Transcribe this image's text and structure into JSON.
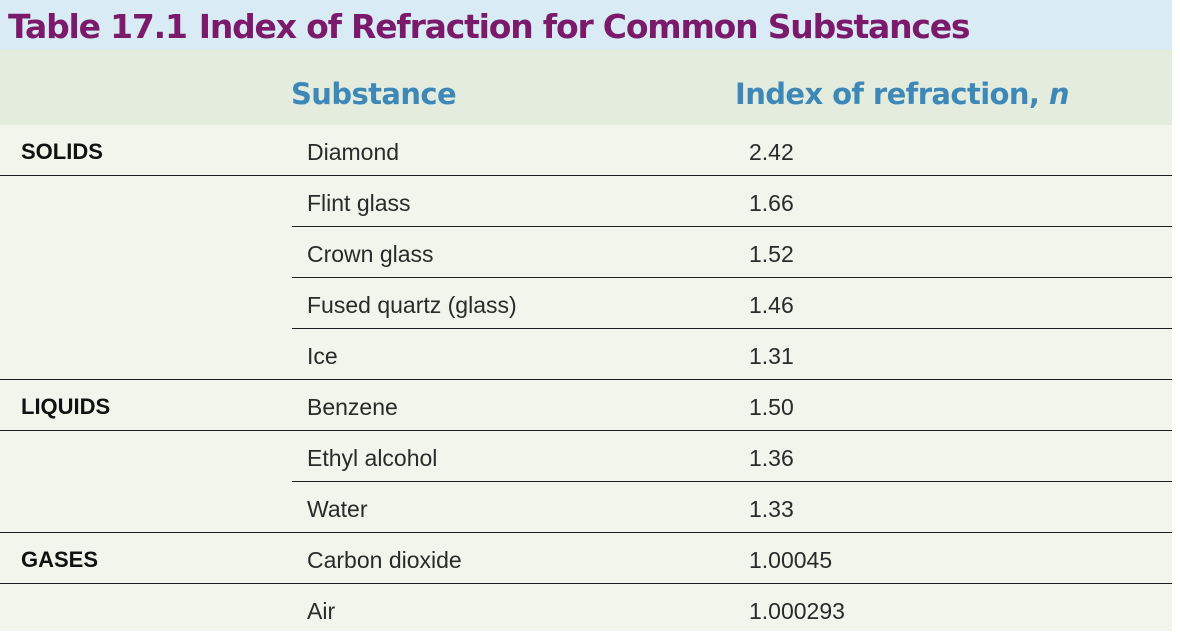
{
  "title": {
    "number": "Table 17.1",
    "text": "Index of Refraction for Common Substances"
  },
  "headers": {
    "substance": "Substance",
    "index_prefix": "Index of refraction, ",
    "index_var": "n"
  },
  "rows": [
    {
      "category": "SOLIDS",
      "substance": "Diamond",
      "value": "2.42"
    },
    {
      "category": "",
      "substance": "Flint glass",
      "value": "1.66"
    },
    {
      "category": "",
      "substance": "Crown glass",
      "value": "1.52"
    },
    {
      "category": "",
      "substance": "Fused quartz (glass)",
      "value": "1.46"
    },
    {
      "category": "",
      "substance": "Ice",
      "value": "1.31"
    },
    {
      "category": "LIQUIDS",
      "substance": "Benzene",
      "value": "1.50"
    },
    {
      "category": "",
      "substance": "Ethyl alcohol",
      "value": "1.36"
    },
    {
      "category": "",
      "substance": "Water",
      "value": "1.33"
    },
    {
      "category": "GASES",
      "substance": "Carbon dioxide",
      "value": "1.00045"
    },
    {
      "category": "",
      "substance": "Air",
      "value": "1.000293"
    }
  ],
  "colors": {
    "title": "#7b1a6b",
    "title_background": "#d9ebf5",
    "header_text": "#3d88b7",
    "table_background": "#f1f5ec"
  }
}
